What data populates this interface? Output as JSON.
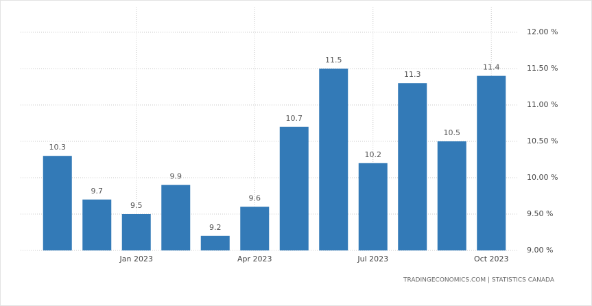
{
  "chart_data": {
    "type": "bar",
    "categories": [
      null,
      null,
      "Jan 2023",
      null,
      null,
      "Apr 2023",
      null,
      null,
      "Jul 2023",
      null,
      null,
      "Oct 2023"
    ],
    "values": [
      10.3,
      9.7,
      9.5,
      9.9,
      9.2,
      9.6,
      10.7,
      11.5,
      10.2,
      11.3,
      10.5,
      11.4
    ],
    "color": "#337ab7",
    "ylim": [
      9,
      12
    ],
    "yticks": [
      {
        "value": 9,
        "label": "9.00 %"
      },
      {
        "value": 9.5,
        "label": "9.50 %"
      },
      {
        "value": 10,
        "label": "10.00 %"
      },
      {
        "value": 10.5,
        "label": "10.50 %"
      },
      {
        "value": 11,
        "label": "11.00 %"
      },
      {
        "value": 11.5,
        "label": "11.50 %"
      },
      {
        "value": 12,
        "label": "12.00 %"
      }
    ],
    "grid": true,
    "source": "TRADINGECONOMICS.COM  |  STATISTICS CANADA"
  }
}
